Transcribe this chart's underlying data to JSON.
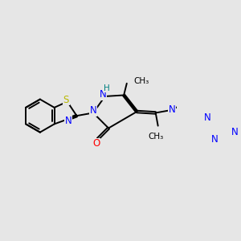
{
  "background_color": "#e6e6e6",
  "bond_color": "#000000",
  "bond_width": 1.4,
  "atom_colors": {
    "S": "#b8b800",
    "N": "#0000ff",
    "O": "#ff0000",
    "H": "#008080",
    "C": "#000000"
  },
  "font_size": 8.5,
  "scale": 1.0
}
